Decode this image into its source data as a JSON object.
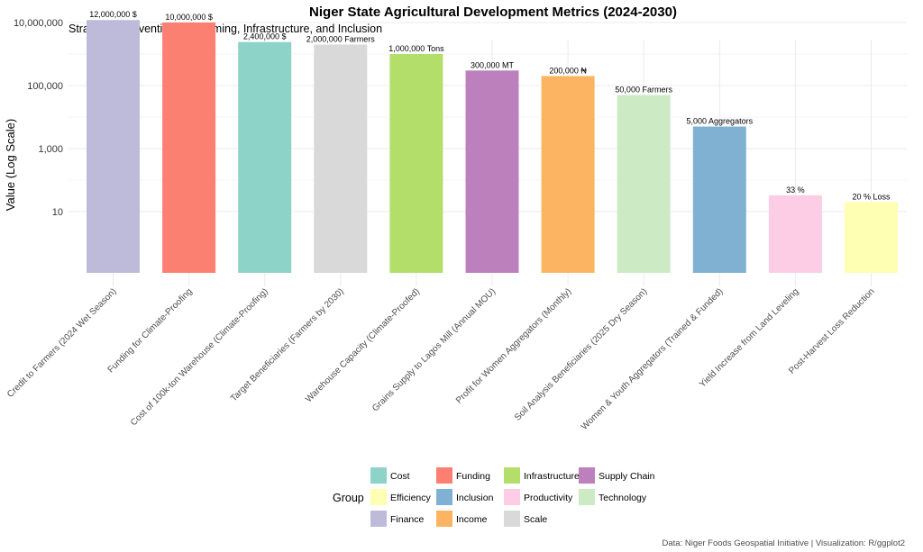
{
  "chart_data": {
    "type": "bar",
    "title": "Niger State Agricultural Development Metrics (2024-2030)",
    "subtitle": "Strategic Interventions in Farming, Infrastructure, and Inclusion",
    "ylabel": "Value (Log Scale)",
    "xlabel": "",
    "y_scale": "log10",
    "ylim": [
      1,
      12000000
    ],
    "y_ticks": [
      {
        "value": 10,
        "label": "10"
      },
      {
        "value": 1000,
        "label": "1,000"
      },
      {
        "value": 100000,
        "label": "100,000"
      },
      {
        "value": 10000000,
        "label": "10,000,000"
      }
    ],
    "grid": true,
    "categories": [
      "Credit to Farmers (2024 Wet Season)",
      "Funding for Climate-Proofing",
      "Cost of 100k-ton Warehouse (Climate-Proofing)",
      "Target Beneficiaries (Farmers by 2030)",
      "Warehouse Capacity (Climate-Proofed)",
      "Grains Supply to Lagos Mill (Annual MOU)",
      "Profit for Women Aggregators (Monthly)",
      "Soil Analysis Beneficiaries (2025 Dry Season)",
      "Women & Youth Aggregators (Trained & Funded)",
      "Yield Increase from Land Leveling",
      "Post-Harvest Loss Reduction"
    ],
    "values": [
      12000000,
      10000000,
      2400000,
      2000000,
      1000000,
      300000,
      200000,
      50000,
      5000,
      33,
      20
    ],
    "value_labels": [
      "12,000,000 $",
      "10,000,000 $",
      "2,400,000 $",
      "2,000,000 Farmers",
      "1,000,000 Tons",
      "300,000 MT",
      "200,000 ₦",
      "50,000 Farmers",
      "5,000 Aggregators",
      "33 %",
      "20 % Loss"
    ],
    "groups": [
      "Finance",
      "Funding",
      "Cost",
      "Scale",
      "Infrastructure",
      "Supply Chain",
      "Income",
      "Technology",
      "Inclusion",
      "Productivity",
      "Efficiency"
    ],
    "legend": {
      "title": "Group",
      "placement": "bottom",
      "items": [
        {
          "name": "Cost",
          "color": "#8DD3C7"
        },
        {
          "name": "Funding",
          "color": "#FB8072"
        },
        {
          "name": "Infrastructure",
          "color": "#B3DE69"
        },
        {
          "name": "Supply Chain",
          "color": "#BC80BD"
        },
        {
          "name": "Efficiency",
          "color": "#FFFFB3"
        },
        {
          "name": "Inclusion",
          "color": "#80B1D3"
        },
        {
          "name": "Productivity",
          "color": "#FCCDE5"
        },
        {
          "name": "Technology",
          "color": "#CCEBC5"
        },
        {
          "name": "Finance",
          "color": "#BEBADA"
        },
        {
          "name": "Income",
          "color": "#FDB462"
        },
        {
          "name": "Scale",
          "color": "#D9D9D9"
        }
      ]
    },
    "caption": "Data: Niger Foods Geospatial Initiative | Visualization: R/ggplot2"
  }
}
